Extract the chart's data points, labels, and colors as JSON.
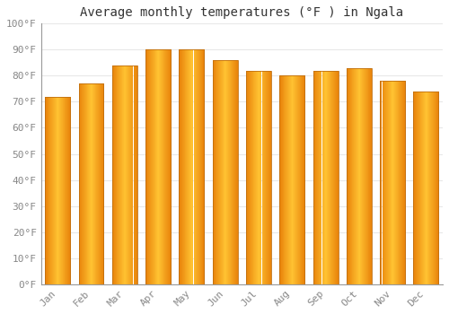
{
  "title": "Average monthly temperatures (°F ) in Ngala",
  "months": [
    "Jan",
    "Feb",
    "Mar",
    "Apr",
    "May",
    "Jun",
    "Jul",
    "Aug",
    "Sep",
    "Oct",
    "Nov",
    "Dec"
  ],
  "values": [
    72,
    77,
    84,
    90,
    90,
    86,
    82,
    80,
    82,
    83,
    78,
    74
  ],
  "ylim": [
    0,
    100
  ],
  "yticks": [
    0,
    10,
    20,
    30,
    40,
    50,
    60,
    70,
    80,
    90,
    100
  ],
  "ytick_labels": [
    "0°F",
    "10°F",
    "20°F",
    "30°F",
    "40°F",
    "50°F",
    "60°F",
    "70°F",
    "80°F",
    "90°F",
    "100°F"
  ],
  "bar_color_left": "#E8820A",
  "bar_color_center": "#FFB830",
  "bar_color_right": "#E8820A",
  "bar_edge_color": "#C07010",
  "background_color": "#FFFFFF",
  "grid_color": "#E8E8E8",
  "title_fontsize": 10,
  "tick_fontsize": 8,
  "title_font": "monospace",
  "tick_font": "monospace"
}
